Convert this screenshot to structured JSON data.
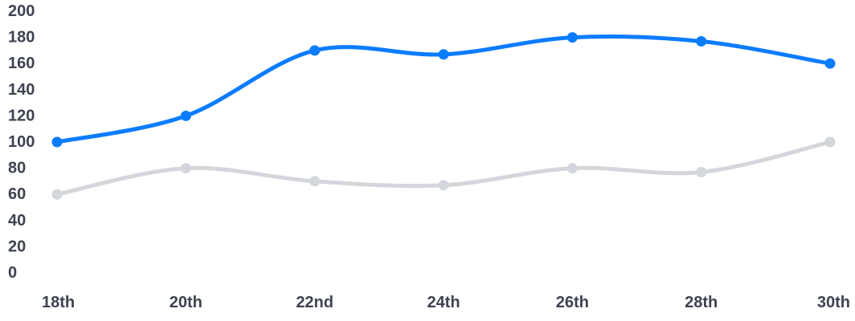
{
  "chart_data": {
    "type": "line",
    "categories": [
      "18th",
      "20th",
      "22nd",
      "24th",
      "26th",
      "28th",
      "30th"
    ],
    "ylim": [
      0,
      200
    ],
    "yticks": [
      0,
      20,
      40,
      60,
      80,
      100,
      120,
      140,
      160,
      180,
      200
    ],
    "grid": false,
    "legend": "none",
    "series": [
      {
        "color": "#0a7cff",
        "values": [
          100,
          120,
          170,
          167,
          180,
          177,
          160
        ]
      },
      {
        "color": "#d3d6db",
        "values": [
          60,
          80,
          70,
          67,
          80,
          77,
          100
        ]
      }
    ]
  }
}
